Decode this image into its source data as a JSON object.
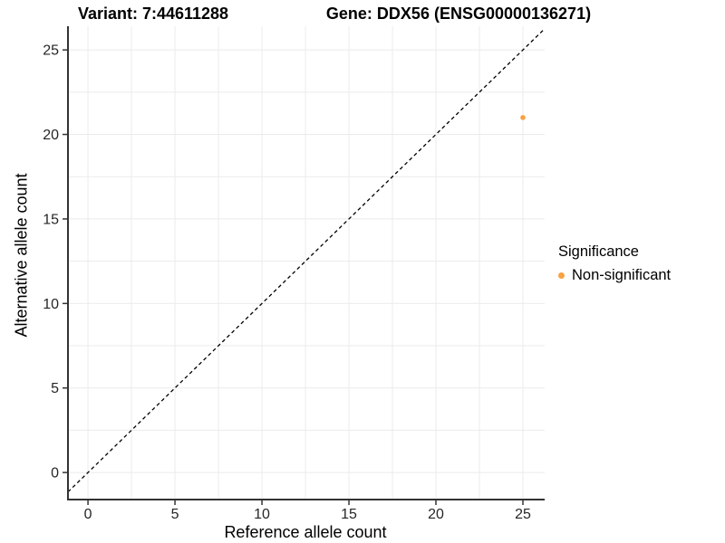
{
  "chart_data": {
    "type": "scatter",
    "title_left": "Variant: 7:44611288",
    "title_right": "Gene: DDX56 (ENSG00000136271)",
    "xlabel": "Reference allele count",
    "ylabel": "Alternative allele count",
    "xlim": [
      -1.15,
      26.25
    ],
    "ylim": [
      -1.6,
      26.4
    ],
    "x_ticks": [
      0,
      5,
      10,
      15,
      20,
      25
    ],
    "y_ticks": [
      0,
      5,
      10,
      15,
      20,
      25
    ],
    "minor_step": 2.5,
    "grid": true,
    "points": [
      {
        "x": 25,
        "y": 21,
        "series": "Non-significant"
      }
    ],
    "identity_line": {
      "slope": 1,
      "intercept": 0,
      "style": "dashed",
      "color": "#000000"
    },
    "legend": {
      "position": "right",
      "title": "Significance",
      "items": [
        {
          "label": "Non-significant",
          "color": "#F8A242"
        }
      ]
    },
    "colors": {
      "point": "#F8A242",
      "grid": "#EBEBEB",
      "axis": "#333333",
      "tick_text": "#262626",
      "background": "#FFFFFF"
    }
  }
}
